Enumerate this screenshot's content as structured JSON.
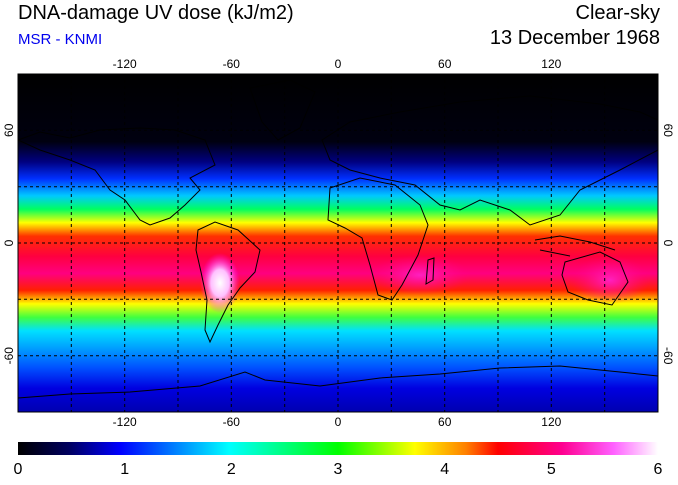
{
  "header": {
    "title": "DNA-damage UV dose (kJ/m2)",
    "subtitle": "MSR - KNMI",
    "condition": "Clear-sky",
    "date": "13 December 1968"
  },
  "map": {
    "projection": "equirectangular",
    "lon_range": [
      -180,
      180
    ],
    "lat_range": [
      -90,
      90
    ],
    "lon_ticks": [
      "-120",
      "-60",
      "0",
      "60",
      "120"
    ],
    "lat_ticks": [
      "60",
      "0",
      "-60"
    ],
    "gridlines": "dashed every 30 degrees"
  },
  "colorbar": {
    "min": 0,
    "max": 6,
    "labels": [
      "0",
      "1",
      "2",
      "3",
      "4",
      "5",
      "6"
    ],
    "colors": [
      "#000000",
      "#0000ff",
      "#00ffff",
      "#00ff00",
      "#ffff00",
      "#ff0000",
      "#ff00ff",
      "#ffffff"
    ]
  }
}
